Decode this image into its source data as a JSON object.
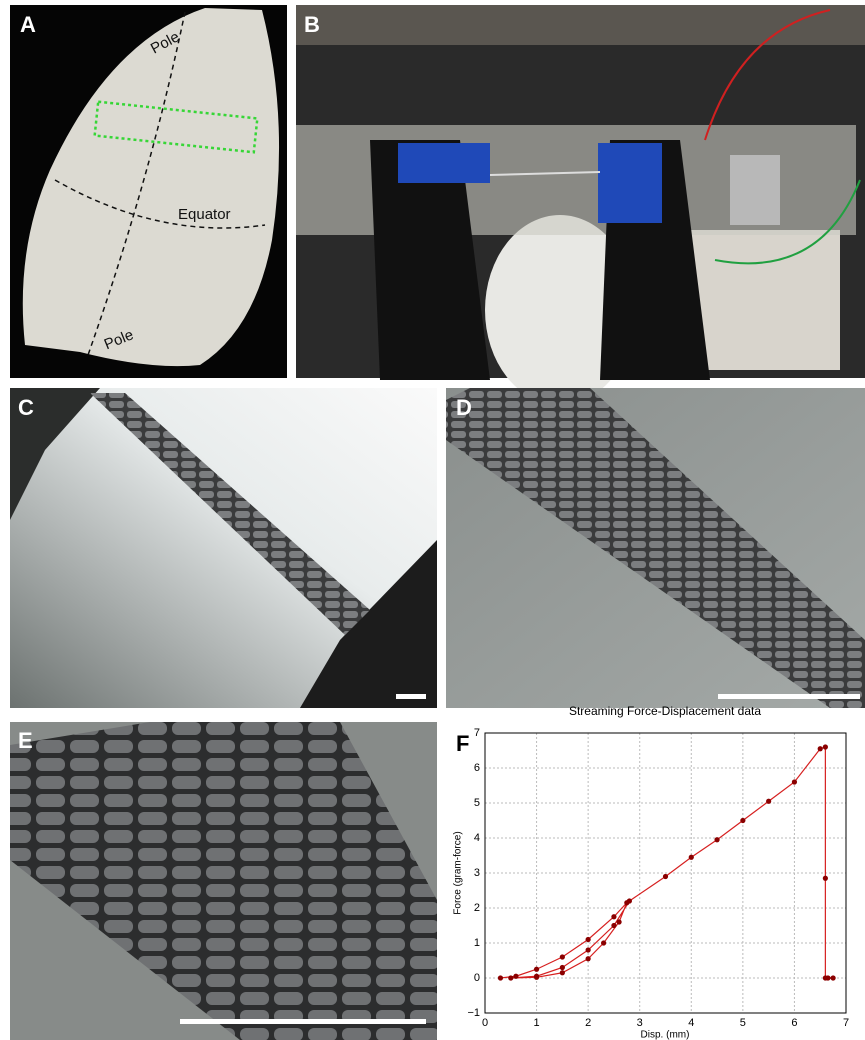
{
  "panels": [
    {
      "label": "A",
      "annotations": [
        "Pole",
        "Equator",
        "Pole"
      ]
    },
    {
      "label": "B"
    },
    {
      "label": "C"
    },
    {
      "label": "D"
    },
    {
      "label": "E"
    },
    {
      "label": "F"
    }
  ],
  "chart_data": {
    "type": "line",
    "title": "Streaming Force-Displacement data",
    "xlabel": "Disp. (mm)",
    "ylabel": "Force (gram-force)",
    "x": [
      0.3,
      0.6,
      1,
      1.5,
      2,
      2.5,
      2.75,
      2.6,
      2.3,
      2,
      1.5,
      1,
      0.5,
      1,
      1.5,
      2,
      2.5,
      2.8,
      3.5,
      4,
      4.5,
      5,
      5.5,
      6,
      6.5,
      6.6,
      6.6,
      6.6,
      6.65,
      6.75
    ],
    "values": [
      0,
      0.05,
      0.25,
      0.6,
      1.1,
      1.75,
      2.15,
      1.6,
      1.0,
      0.55,
      0.15,
      0.02,
      0,
      0.05,
      0.3,
      0.8,
      1.5,
      2.2,
      2.9,
      3.45,
      3.95,
      4.5,
      5.05,
      5.6,
      6.55,
      6.6,
      2.85,
      0,
      0,
      0
    ],
    "color": "#d62020",
    "marker_color": "#8b0000",
    "xlim": [
      0,
      7
    ],
    "xticks": [
      0,
      1,
      2,
      3,
      4,
      5,
      6,
      7
    ],
    "ylim": [
      -1,
      7
    ],
    "yticks": [
      {
        "value": -1,
        "label": "−1"
      },
      0,
      1,
      2,
      3,
      4,
      5,
      6,
      7
    ],
    "grid": true
  }
}
